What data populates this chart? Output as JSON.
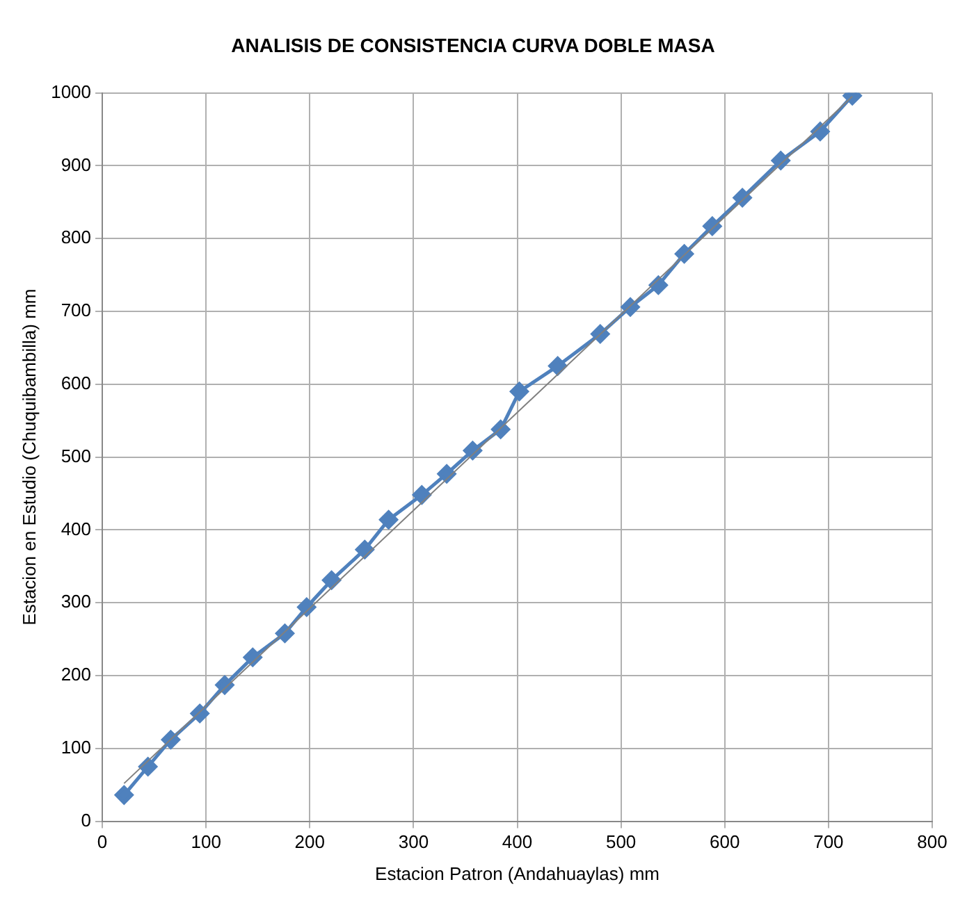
{
  "chart_data": {
    "type": "line",
    "title": "ANALISIS DE CONSISTENCIA CURVA DOBLE MASA",
    "xlabel": "Estacion Patron (Andahuaylas) mm",
    "ylabel": "Estacion en Estudio (Chuquibambilla) mm",
    "xlim": [
      0,
      800
    ],
    "xticks": [
      0,
      100,
      200,
      300,
      400,
      500,
      600,
      700,
      800
    ],
    "ylim": [
      0,
      1000
    ],
    "yticks": [
      0,
      100,
      200,
      300,
      400,
      500,
      600,
      700,
      800,
      900,
      1000
    ],
    "grid": true,
    "legend": false,
    "series": [
      {
        "color": "#4f81bd",
        "marker": "diamond",
        "line_style": "solid",
        "x": [
          21,
          44,
          66,
          94,
          118,
          145,
          176,
          197,
          221,
          253,
          276,
          308,
          332,
          357,
          384,
          402,
          439,
          480,
          509,
          536,
          561,
          588,
          617,
          654,
          692,
          723
        ],
        "values": [
          36,
          75,
          112,
          148,
          187,
          225,
          258,
          294,
          331,
          373,
          414,
          448,
          477,
          509,
          538,
          590,
          625,
          669,
          706,
          736,
          779,
          817,
          856,
          907,
          947,
          996
        ]
      },
      {
        "color": "#808080",
        "marker": "none",
        "line_style": "solid",
        "x": [
          21,
          723
        ],
        "values": [
          52,
          995
        ]
      }
    ]
  }
}
